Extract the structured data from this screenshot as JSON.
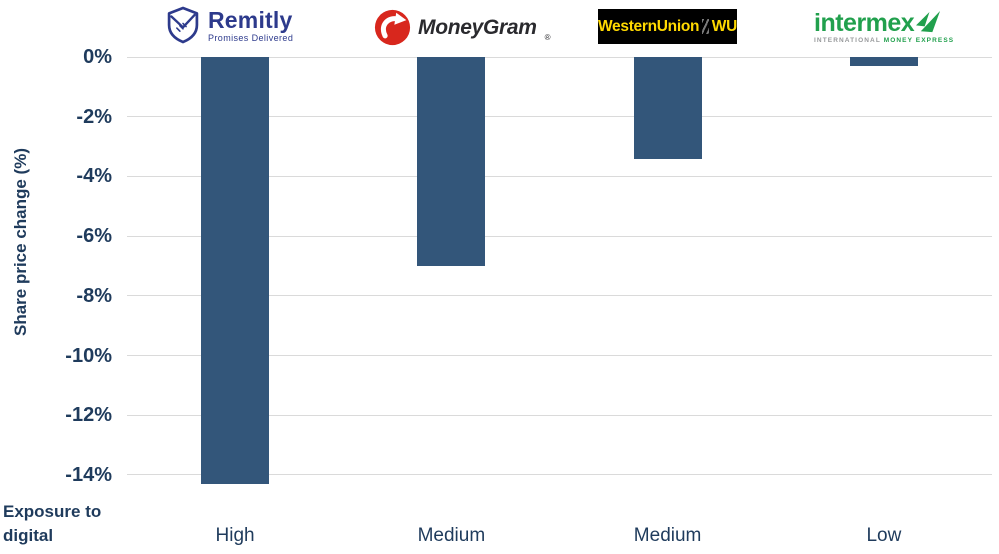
{
  "chart_data": {
    "type": "bar",
    "title": "",
    "ylabel": "Share price change (%)",
    "xlabel": "Exposure to digital",
    "companies": [
      "Remitly",
      "MoneyGram",
      "Western Union",
      "Intermex"
    ],
    "categories": [
      "High",
      "Medium",
      "Medium",
      "Low"
    ],
    "series": [
      {
        "name": "Share price change (%)",
        "values": [
          -14.3,
          -7.0,
          -3.4,
          -0.3
        ]
      }
    ],
    "ylim": [
      -15,
      0
    ],
    "yticks": [
      0,
      -2,
      -4,
      -6,
      -8,
      -10,
      -12,
      -14
    ],
    "ytick_labels": [
      "0%",
      "-2%",
      "-4%",
      "-6%",
      "-8%",
      "-10%",
      "-12%",
      "-14%"
    ],
    "grid": true,
    "legend": false,
    "bar_color": "#33567A"
  },
  "axis": {
    "y_title": "Share price change (%)",
    "x_title_line1": "Exposure to",
    "x_title_line2": "digital"
  },
  "logos": {
    "remitly": {
      "name": "Remitly",
      "tagline": "Promises Delivered",
      "color": "#2d3a8c"
    },
    "moneygram": {
      "name": "MoneyGram",
      "reg": "®",
      "icon_color": "#d8271d",
      "text_color": "#2a2a2e"
    },
    "westernunion": {
      "text": "WesternUnion",
      "abbr": "WU",
      "bg": "#000000",
      "fg": "#ffd900"
    },
    "intermex": {
      "name": "intermex",
      "subtext_gray": "INTERNATIONAL",
      "subtext_green": "MONEY EXPRESS",
      "color": "#21a04d",
      "gray": "#97999b"
    }
  },
  "colors": {
    "chart_text": "#1f3b5c",
    "gridline": "#dadada"
  }
}
